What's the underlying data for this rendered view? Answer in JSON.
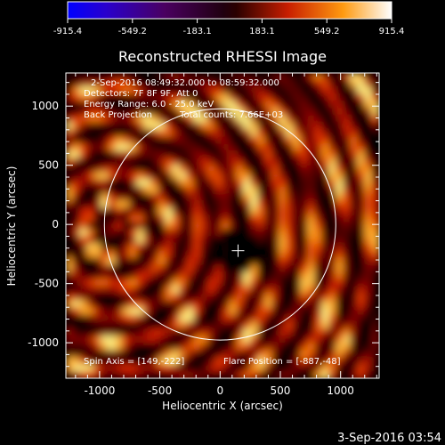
{
  "colorbar": {
    "tick_labels": [
      "-915.4",
      "-549.2",
      "-183.1",
      "183.1",
      "549.2",
      "915.4"
    ],
    "range": [
      -915.4,
      915.4
    ]
  },
  "title": "Reconstructed RHESSI Image",
  "info": {
    "time": "2-Sep-2016 08:49:32.000 to 08:59:32.000",
    "detectors": "Detectors: 7F 8F 9F, Att 0",
    "energy": "Energy Range: 6.0 - 25.0 keV",
    "method": "Back Projection",
    "counts": "Total counts: 7.66E+03"
  },
  "footer_left": "Spin Axis = [149,-222]",
  "footer_right": "Flare Position = [-887,-48]",
  "timestamp": "3-Sep-2016 03:54",
  "chart_data": {
    "type": "heatmap",
    "title": "Reconstructed RHESSI Image",
    "xlabel": "Heliocentric X (arcsec)",
    "ylabel": "Heliocentric Y (arcsec)",
    "xlim": [
      -1280,
      1320
    ],
    "ylim": [
      -1300,
      1280
    ],
    "x_ticks": [
      -1000,
      -500,
      0,
      500,
      1000
    ],
    "y_ticks": [
      1000,
      500,
      0,
      -500,
      -1000
    ],
    "x_tick_labels": [
      "-1000",
      "-500",
      "0",
      "500",
      "1000"
    ],
    "y_tick_labels": [
      "1000",
      "500",
      "0",
      "-500",
      "-1000"
    ],
    "solar_disk": {
      "center": [
        0,
        0
      ],
      "radius_arcsec": 960
    },
    "spin_axis": [
      149,
      -222
    ],
    "flare_position": [
      -887,
      -48
    ],
    "colormap": "hot",
    "colors": {
      "low": "#000000",
      "mid": "#c81e00",
      "high": "#ffe870"
    },
    "grid": false
  }
}
